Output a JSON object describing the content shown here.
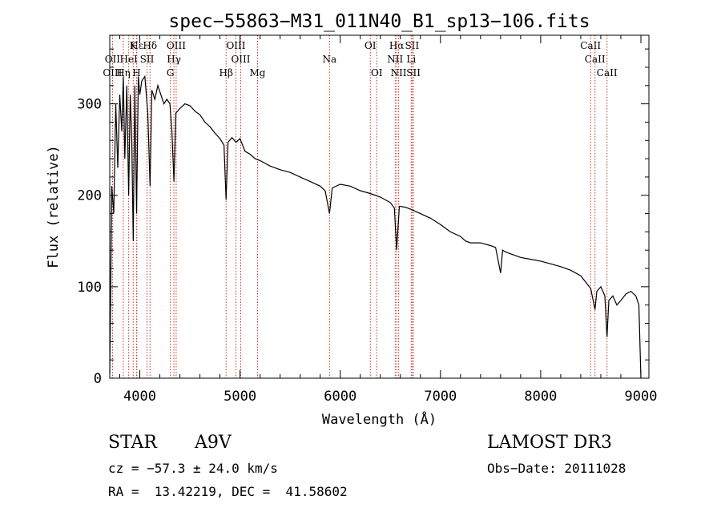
{
  "chart_data": {
    "type": "line",
    "title": "spec−55863−M31_011N40_B1_sp13−106.fits",
    "xlabel": "Wavelength (Å)",
    "ylabel": "Flux (relative)",
    "xlim": [
      3700,
      9080
    ],
    "ylim": [
      0,
      375
    ],
    "x_ticks": [
      4000,
      5000,
      6000,
      7000,
      8000,
      9000
    ],
    "y_ticks": [
      0,
      100,
      200,
      300
    ],
    "series": [
      {
        "name": "spectrum",
        "x": [
          3700,
          3720,
          3740,
          3760,
          3780,
          3800,
          3820,
          3835,
          3850,
          3870,
          3889,
          3905,
          3920,
          3934,
          3950,
          3968,
          3985,
          4000,
          4020,
          4050,
          4080,
          4102,
          4120,
          4150,
          4180,
          4210,
          4240,
          4270,
          4300,
          4320,
          4340,
          4360,
          4400,
          4450,
          4500,
          4550,
          4600,
          4650,
          4700,
          4750,
          4800,
          4840,
          4861,
          4880,
          4920,
          4960,
          5000,
          5050,
          5100,
          5150,
          5200,
          5300,
          5400,
          5500,
          5600,
          5700,
          5800,
          5850,
          5893,
          5920,
          6000,
          6100,
          6200,
          6300,
          6400,
          6450,
          6500,
          6540,
          6563,
          6590,
          6650,
          6700,
          6800,
          6900,
          7000,
          7100,
          7200,
          7250,
          7300,
          7400,
          7500,
          7550,
          7600,
          7620,
          7650,
          7700,
          7800,
          7900,
          8000,
          8100,
          8200,
          8300,
          8400,
          8450,
          8500,
          8542,
          8560,
          8600,
          8640,
          8662,
          8680,
          8720,
          8760,
          8800,
          8850,
          8900,
          8950,
          8980,
          9000
        ],
        "values": [
          5,
          210,
          180,
          300,
          230,
          310,
          270,
          330,
          240,
          320,
          200,
          310,
          260,
          150,
          320,
          180,
          330,
          310,
          325,
          330,
          290,
          210,
          315,
          305,
          320,
          310,
          300,
          305,
          300,
          270,
          215,
          290,
          295,
          300,
          298,
          292,
          288,
          280,
          275,
          268,
          262,
          255,
          195,
          258,
          263,
          258,
          262,
          248,
          245,
          240,
          238,
          232,
          228,
          225,
          220,
          215,
          210,
          205,
          180,
          208,
          212,
          210,
          205,
          202,
          198,
          195,
          192,
          186,
          140,
          188,
          187,
          185,
          180,
          175,
          168,
          160,
          155,
          150,
          148,
          148,
          145,
          143,
          115,
          140,
          138,
          136,
          132,
          130,
          128,
          125,
          122,
          118,
          112,
          105,
          98,
          75,
          95,
          100,
          90,
          45,
          85,
          90,
          80,
          85,
          92,
          95,
          90,
          80,
          0
        ]
      }
    ],
    "lines": [
      {
        "name": "Hε",
        "wl": 3970,
        "row": 0
      },
      {
        "name": "K",
        "wl": 3934,
        "row": 0
      },
      {
        "name": "Hδ",
        "wl": 4102,
        "row": 0
      },
      {
        "name": "OIII",
        "wl": 4363,
        "row": 0
      },
      {
        "name": "OIII",
        "wl": 4959,
        "row": 0
      },
      {
        "name": "OI",
        "wl": 6300,
        "row": 0
      },
      {
        "name": "Hα",
        "wl": 6563,
        "row": 0
      },
      {
        "name": "SII",
        "wl": 6717,
        "row": 0
      },
      {
        "name": "CaII",
        "wl": 8498,
        "row": 0
      },
      {
        "name": "OII",
        "wl": 3727,
        "row": 1
      },
      {
        "name": "HeI",
        "wl": 3889,
        "row": 1
      },
      {
        "name": "SII",
        "wl": 4072,
        "row": 1
      },
      {
        "name": "Hγ",
        "wl": 4340,
        "row": 1
      },
      {
        "name": "OIII",
        "wl": 5007,
        "row": 1
      },
      {
        "name": "Na",
        "wl": 5893,
        "row": 1
      },
      {
        "name": "NII",
        "wl": 6548,
        "row": 1
      },
      {
        "name": "Li",
        "wl": 6708,
        "row": 1
      },
      {
        "name": "CaII",
        "wl": 8542,
        "row": 1
      },
      {
        "name": "OIII",
        "wl": 3727,
        "row": 2
      },
      {
        "name": "Hη",
        "wl": 3835,
        "row": 2
      },
      {
        "name": "H",
        "wl": 3968,
        "row": 2
      },
      {
        "name": "G",
        "wl": 4305,
        "row": 2
      },
      {
        "name": "Hβ",
        "wl": 4861,
        "row": 2
      },
      {
        "name": "Mg",
        "wl": 5175,
        "row": 2
      },
      {
        "name": "OI",
        "wl": 6364,
        "row": 2
      },
      {
        "name": "NII",
        "wl": 6583,
        "row": 2
      },
      {
        "name": "SII",
        "wl": 6731,
        "row": 2
      },
      {
        "name": "CaII",
        "wl": 8662,
        "row": 2
      }
    ]
  },
  "info": {
    "object_class": "STAR",
    "subclass": "A9V",
    "survey": "LAMOST DR3",
    "cz_line": "cz = −57.3 ± 24.0 km/s",
    "obs_date_line": "Obs−Date: 20111028",
    "radec_line": "RA =  13.42219, DEC =  41.58602"
  },
  "colors": {
    "line": "#000000",
    "marker": "#c0392b"
  }
}
